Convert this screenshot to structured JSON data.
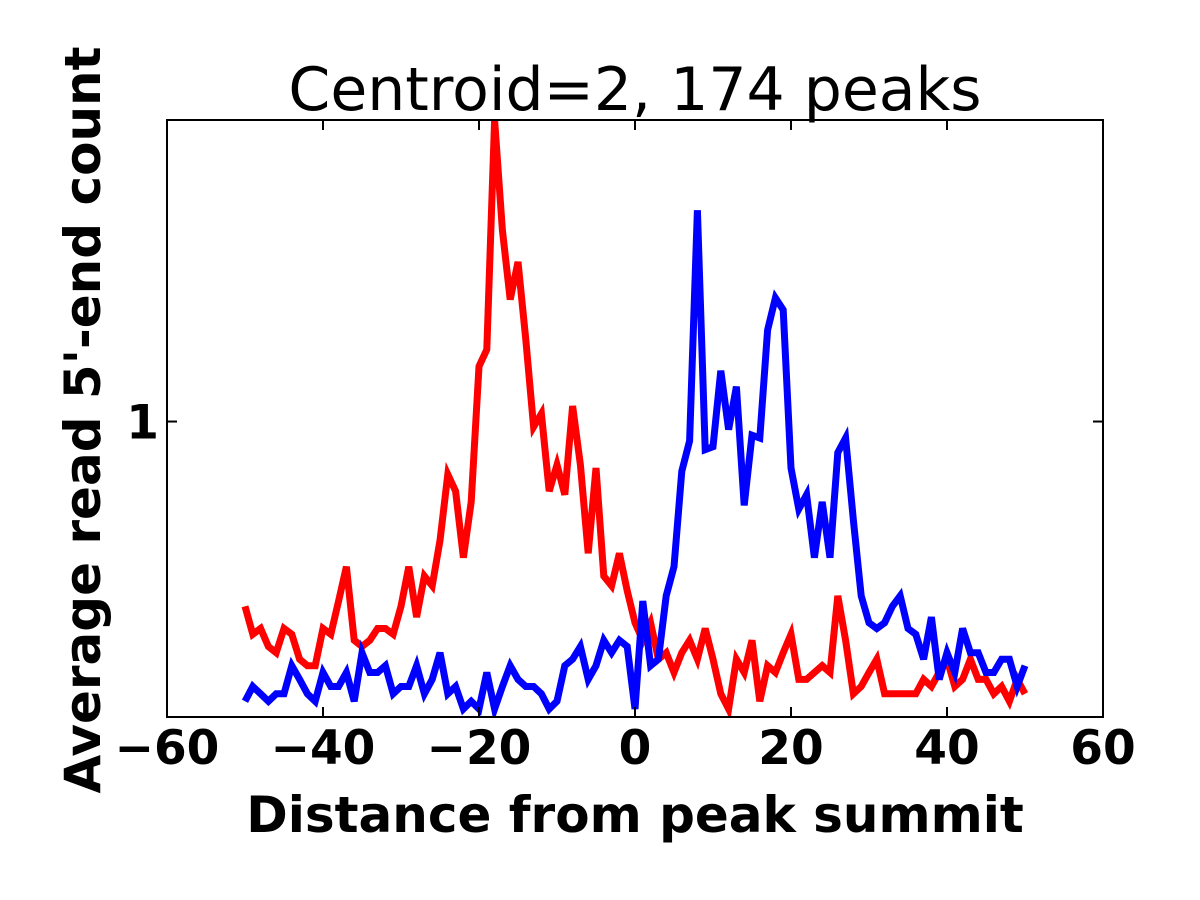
{
  "chart_data": {
    "type": "line",
    "title": "Centroid=2, 174 peaks",
    "xlabel": "Distance from peak summit",
    "ylabel": "Average read 5'-end count",
    "yscale": "log",
    "xlim": [
      -60,
      60
    ],
    "xticks": [
      {
        "value": -60,
        "label": "−60"
      },
      {
        "value": -40,
        "label": "−40"
      },
      {
        "value": -20,
        "label": "−20"
      },
      0,
      20,
      40,
      60
    ],
    "ylim": [
      0.33,
      3.1
    ],
    "yticks": [
      1
    ],
    "x": [
      -50,
      -49,
      -48,
      -47,
      -46,
      -45,
      -44,
      -43,
      -42,
      -41,
      -40,
      -39,
      -38,
      -37,
      -36,
      -35,
      -34,
      -33,
      -32,
      -31,
      -30,
      -29,
      -28,
      -27,
      -26,
      -25,
      -24,
      -23,
      -22,
      -21,
      -20,
      -19,
      -18,
      -17,
      -16,
      -15,
      -14,
      -13,
      -12,
      -11,
      -10,
      -9,
      -8,
      -7,
      -6,
      -5,
      -4,
      -3,
      -2,
      -1,
      0,
      1,
      2,
      3,
      4,
      5,
      6,
      7,
      8,
      9,
      10,
      11,
      12,
      13,
      14,
      15,
      16,
      17,
      18,
      19,
      20,
      21,
      22,
      23,
      24,
      25,
      26,
      27,
      28,
      29,
      30,
      31,
      32,
      33,
      34,
      35,
      36,
      37,
      38,
      39,
      40,
      41,
      42,
      43,
      44,
      45,
      46,
      47,
      48,
      49,
      50
    ],
    "series": [
      {
        "color": "#ff0000",
        "values": [
          0.5,
          0.45,
          0.46,
          0.43,
          0.42,
          0.46,
          0.45,
          0.41,
          0.4,
          0.4,
          0.46,
          0.45,
          0.51,
          0.58,
          0.44,
          0.43,
          0.44,
          0.46,
          0.46,
          0.45,
          0.5,
          0.58,
          0.48,
          0.56,
          0.54,
          0.64,
          0.82,
          0.77,
          0.6,
          0.74,
          1.23,
          1.31,
          3.1,
          2.05,
          1.58,
          1.82,
          1.36,
          0.98,
          1.03,
          0.77,
          0.85,
          0.76,
          1.06,
          0.85,
          0.61,
          0.84,
          0.56,
          0.54,
          0.61,
          0.53,
          0.47,
          0.44,
          0.47,
          0.41,
          0.42,
          0.39,
          0.42,
          0.44,
          0.41,
          0.46,
          0.41,
          0.36,
          0.34,
          0.41,
          0.39,
          0.44,
          0.35,
          0.4,
          0.39,
          0.42,
          0.45,
          0.38,
          0.38,
          0.39,
          0.4,
          0.39,
          0.52,
          0.44,
          0.36,
          0.37,
          0.39,
          0.41,
          0.36,
          0.36,
          0.36,
          0.36,
          0.36,
          0.38,
          0.37,
          0.39,
          0.41,
          0.37,
          0.38,
          0.41,
          0.38,
          0.38,
          0.36,
          0.37,
          0.35,
          0.38,
          0.36
        ]
      },
      {
        "color": "#0000ff",
        "values": [
          0.35,
          0.37,
          0.36,
          0.35,
          0.36,
          0.36,
          0.4,
          0.38,
          0.36,
          0.35,
          0.39,
          0.37,
          0.37,
          0.39,
          0.35,
          0.42,
          0.39,
          0.39,
          0.4,
          0.36,
          0.37,
          0.37,
          0.4,
          0.36,
          0.38,
          0.42,
          0.36,
          0.37,
          0.34,
          0.35,
          0.34,
          0.39,
          0.34,
          0.37,
          0.4,
          0.38,
          0.37,
          0.37,
          0.36,
          0.34,
          0.35,
          0.4,
          0.41,
          0.43,
          0.38,
          0.4,
          0.44,
          0.42,
          0.44,
          0.43,
          0.34,
          0.51,
          0.4,
          0.41,
          0.52,
          0.58,
          0.83,
          0.93,
          2.21,
          0.9,
          0.91,
          1.21,
          0.97,
          1.14,
          0.73,
          0.95,
          0.94,
          1.41,
          1.59,
          1.52,
          0.84,
          0.72,
          0.76,
          0.6,
          0.74,
          0.6,
          0.89,
          0.94,
          0.69,
          0.52,
          0.47,
          0.46,
          0.47,
          0.5,
          0.52,
          0.46,
          0.45,
          0.41,
          0.48,
          0.38,
          0.42,
          0.39,
          0.46,
          0.42,
          0.42,
          0.39,
          0.39,
          0.41,
          0.41,
          0.37,
          0.4
        ]
      }
    ]
  }
}
